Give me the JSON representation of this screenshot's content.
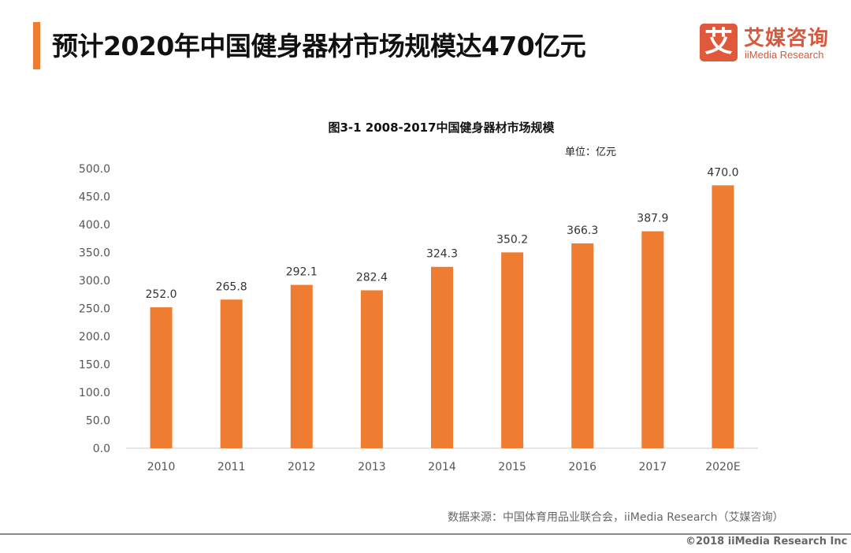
{
  "header": {
    "title": "预计2020年中国健身器材市场规模达470亿元",
    "logo_cn": "艾媒咨询",
    "logo_en": "iiMedia Research",
    "logo_mark": "艾"
  },
  "footer": {
    "source": "数据来源：中国体育用品业联合会，iiMedia Research（艾媒咨询）",
    "copyright": "©2018  iiMedia Research  Inc"
  },
  "colors": {
    "accent": "#ef7d31",
    "bar": "#ef7d31",
    "logo": "#e0593a"
  },
  "chart_data": {
    "type": "bar",
    "title": "图3-1 2008-2017中国健身器材市场规模",
    "unit": "单位：亿元",
    "categories": [
      "2010",
      "2011",
      "2012",
      "2013",
      "2014",
      "2015",
      "2016",
      "2017",
      "2020E"
    ],
    "values": [
      252.0,
      265.8,
      292.1,
      282.4,
      324.3,
      350.2,
      366.3,
      387.9,
      470.0
    ],
    "ylim": [
      0,
      500
    ],
    "yticks": [
      0,
      50,
      100,
      150,
      200,
      250,
      300,
      350,
      400,
      450,
      500
    ],
    "grid": false,
    "legend": "none"
  }
}
